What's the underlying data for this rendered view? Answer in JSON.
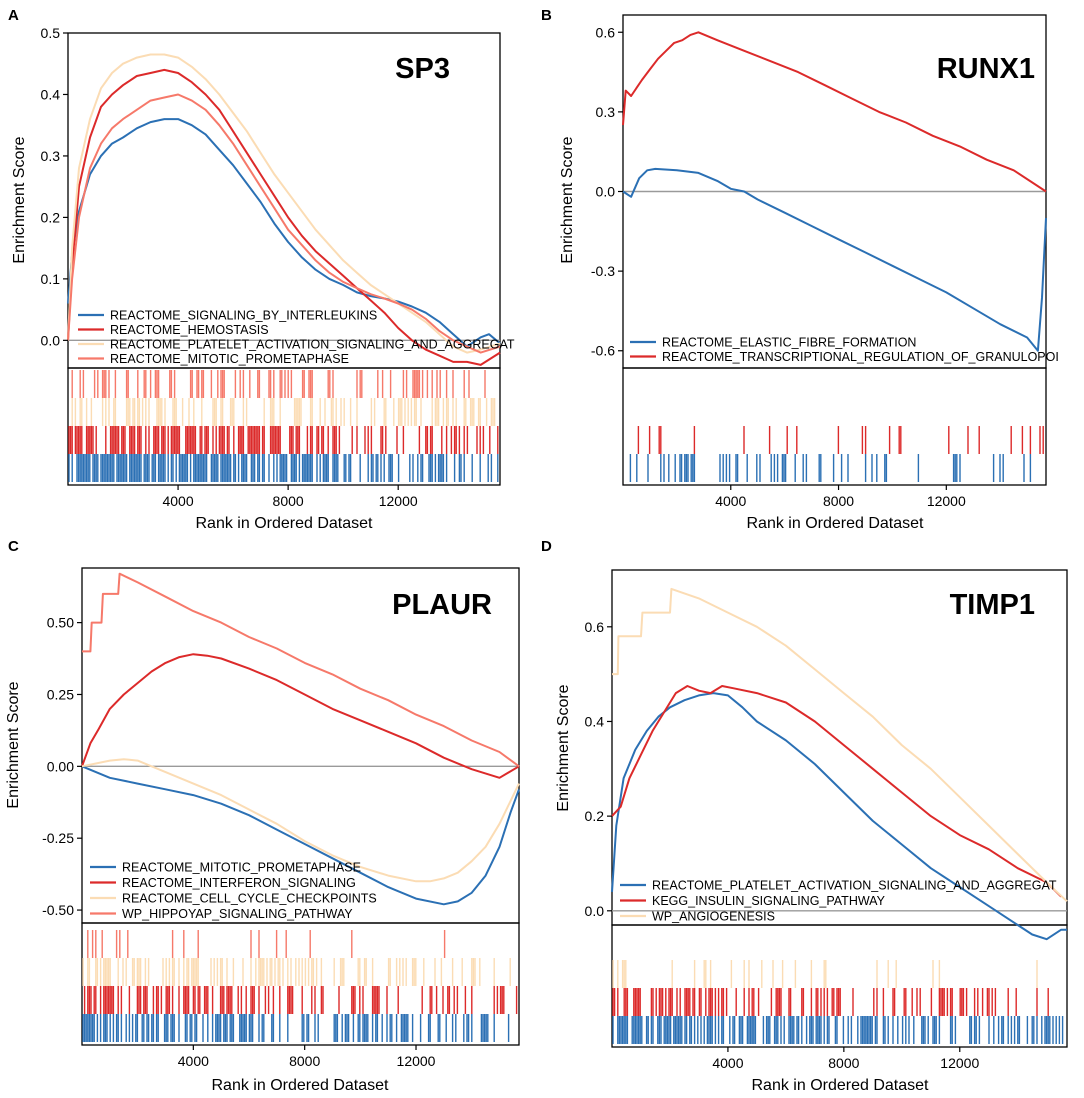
{
  "figure": {
    "x_axis_label": "Rank in Ordered Dataset",
    "y_axis_label": "Enrichment Score"
  },
  "colors": {
    "blue": "#2b70b4",
    "red": "#dc2a2a",
    "cream": "#fbdcb4",
    "salmon": "#f6796a",
    "zero_line": "#9a9a9a"
  },
  "chart_data": [
    {
      "panel_letter": "A",
      "title": "SP3",
      "type": "line",
      "xlabel": "Rank in Ordered Dataset",
      "ylabel": "Enrichment Score",
      "xlim": [
        0,
        15700
      ],
      "ylim": [
        -0.045,
        0.5
      ],
      "x_ticks": [
        4000,
        8000,
        12000
      ],
      "x_tick_labels": [
        "4000",
        "8000",
        "12000"
      ],
      "y_ticks": [
        0.0,
        0.1,
        0.2,
        0.3,
        0.4,
        0.5
      ],
      "y_tick_labels": [
        "0.0",
        "0.1",
        "0.2",
        "0.3",
        "0.4",
        "0.5"
      ],
      "legend_position": "bottom-left",
      "series": [
        {
          "name": "REACTOME_SIGNALING_BY_INTERLEUKINS",
          "color_key": "blue",
          "x": [
            0,
            150,
            400,
            800,
            1200,
            1600,
            2000,
            2500,
            3000,
            3500,
            4000,
            4500,
            5000,
            5500,
            6000,
            6500,
            7000,
            7500,
            8000,
            8500,
            9000,
            9500,
            10000,
            10500,
            11000,
            11500,
            12000,
            12500,
            13000,
            13500,
            14000,
            14500,
            15000,
            15300,
            15700
          ],
          "y": [
            0.06,
            0.14,
            0.21,
            0.27,
            0.3,
            0.32,
            0.33,
            0.345,
            0.355,
            0.36,
            0.36,
            0.35,
            0.335,
            0.31,
            0.285,
            0.255,
            0.225,
            0.19,
            0.16,
            0.135,
            0.115,
            0.1,
            0.09,
            0.078,
            0.072,
            0.068,
            0.063,
            0.055,
            0.045,
            0.03,
            0.01,
            -0.01,
            0.005,
            0.01,
            -0.005
          ]
        },
        {
          "name": "REACTOME_HEMOSTASIS",
          "color_key": "red",
          "x": [
            0,
            150,
            400,
            800,
            1200,
            1600,
            2000,
            2500,
            3000,
            3500,
            4000,
            4500,
            5000,
            5500,
            6000,
            6500,
            7000,
            7500,
            8000,
            8500,
            9000,
            9500,
            10000,
            10500,
            11000,
            11500,
            12000,
            12500,
            13000,
            13500,
            14000,
            14500,
            15000,
            15700
          ],
          "y": [
            0.0,
            0.12,
            0.25,
            0.33,
            0.38,
            0.4,
            0.415,
            0.43,
            0.435,
            0.44,
            0.435,
            0.42,
            0.4,
            0.375,
            0.34,
            0.305,
            0.27,
            0.235,
            0.2,
            0.17,
            0.145,
            0.125,
            0.105,
            0.085,
            0.065,
            0.045,
            0.02,
            0.0,
            -0.015,
            -0.025,
            -0.035,
            -0.035,
            -0.04,
            -0.02
          ]
        },
        {
          "name": "REACTOME_PLATELET_ACTIVATION_SIGNALING_AND_AGGREGAT",
          "color_key": "cream",
          "x": [
            0,
            150,
            400,
            800,
            1200,
            1600,
            2000,
            2500,
            3000,
            3500,
            4000,
            4500,
            5000,
            5500,
            6000,
            6500,
            7000,
            7500,
            8000,
            8500,
            9000,
            9500,
            10000,
            10500,
            11000,
            11500,
            12000,
            12500,
            13000,
            13500,
            14000,
            14500,
            15000,
            15700
          ],
          "y": [
            0.0,
            0.15,
            0.28,
            0.36,
            0.41,
            0.435,
            0.45,
            0.46,
            0.465,
            0.465,
            0.46,
            0.445,
            0.425,
            0.4,
            0.37,
            0.34,
            0.305,
            0.27,
            0.24,
            0.21,
            0.18,
            0.155,
            0.13,
            0.11,
            0.09,
            0.075,
            0.06,
            0.045,
            0.03,
            0.01,
            -0.01,
            -0.02,
            -0.015,
            -0.005
          ]
        },
        {
          "name": "REACTOME_MITOTIC_PROMETAPHASE",
          "color_key": "salmon",
          "x": [
            0,
            150,
            400,
            800,
            1200,
            1600,
            2000,
            2500,
            3000,
            3500,
            4000,
            4500,
            5000,
            5500,
            6000,
            6500,
            7000,
            7500,
            8000,
            8500,
            9000,
            9500,
            10000,
            10500,
            11000,
            11500,
            12000,
            12500,
            13000,
            13500,
            14000,
            14500,
            15000,
            15700
          ],
          "y": [
            0.0,
            0.1,
            0.2,
            0.28,
            0.32,
            0.345,
            0.36,
            0.375,
            0.39,
            0.395,
            0.4,
            0.39,
            0.375,
            0.35,
            0.32,
            0.285,
            0.25,
            0.215,
            0.18,
            0.155,
            0.13,
            0.11,
            0.095,
            0.085,
            0.075,
            0.068,
            0.06,
            0.05,
            0.035,
            0.015,
            0.0,
            -0.01,
            -0.02,
            -0.01
          ]
        }
      ],
      "hit_rows": [
        {
          "color_key": "salmon",
          "density": 0.35,
          "seed": 11
        },
        {
          "color_key": "cream",
          "density": 0.45,
          "seed": 12
        },
        {
          "color_key": "red",
          "density": 0.6,
          "seed": 13
        },
        {
          "color_key": "blue",
          "density": 0.75,
          "seed": 14
        }
      ]
    },
    {
      "panel_letter": "B",
      "title": "RUNX1",
      "type": "line",
      "xlabel": "Rank in Ordered Dataset",
      "ylabel": "Enrichment Score",
      "xlim": [
        0,
        15700
      ],
      "ylim": [
        -0.665,
        0.665
      ],
      "x_ticks": [
        4000,
        8000,
        12000
      ],
      "x_tick_labels": [
        "4000",
        "8000",
        "12000"
      ],
      "y_ticks": [
        -0.6,
        -0.3,
        0.0,
        0.3,
        0.6
      ],
      "y_tick_labels": [
        "-0.6",
        "-0.3",
        "0.0",
        "0.3",
        "0.6"
      ],
      "legend_position": "bottom-left",
      "series": [
        {
          "name": "REACTOME_ELASTIC_FIBRE_FORMATION",
          "color_key": "blue",
          "x": [
            0,
            300,
            600,
            900,
            1200,
            2000,
            2800,
            3500,
            4000,
            4500,
            5000,
            6000,
            7000,
            8000,
            9000,
            10000,
            11000,
            12000,
            13000,
            14000,
            15000,
            15400,
            15550,
            15700
          ],
          "y": [
            0.0,
            -0.02,
            0.05,
            0.08,
            0.085,
            0.08,
            0.07,
            0.04,
            0.01,
            0.0,
            -0.03,
            -0.08,
            -0.13,
            -0.18,
            -0.23,
            -0.28,
            -0.33,
            -0.38,
            -0.44,
            -0.5,
            -0.55,
            -0.6,
            -0.4,
            -0.1
          ]
        },
        {
          "name": "REACTOME_TRANSCRIPTIONAL_REGULATION_OF_GRANULOPOI",
          "color_key": "red",
          "x": [
            0,
            100,
            300,
            700,
            1000,
            1300,
            1600,
            1900,
            2200,
            2500,
            2800,
            3500,
            4500,
            5500,
            6500,
            7500,
            8500,
            9500,
            10500,
            11500,
            12500,
            13500,
            14500,
            15700
          ],
          "y": [
            0.25,
            0.38,
            0.36,
            0.42,
            0.46,
            0.5,
            0.53,
            0.56,
            0.57,
            0.59,
            0.6,
            0.57,
            0.53,
            0.49,
            0.45,
            0.4,
            0.35,
            0.3,
            0.26,
            0.21,
            0.17,
            0.12,
            0.08,
            0.0
          ]
        }
      ],
      "hit_rows": [
        {
          "color_key": "red",
          "density": 0.12,
          "seed": 21
        },
        {
          "color_key": "blue",
          "density": 0.2,
          "seed": 22
        }
      ]
    },
    {
      "panel_letter": "C",
      "title": "PLAUR",
      "type": "line",
      "xlabel": "Rank in Ordered Dataset",
      "ylabel": "Enrichment Score",
      "xlim": [
        0,
        15700
      ],
      "ylim": [
        -0.545,
        0.69
      ],
      "x_ticks": [
        4000,
        8000,
        12000
      ],
      "x_tick_labels": [
        "4000",
        "8000",
        "12000"
      ],
      "y_ticks": [
        -0.5,
        -0.25,
        0.0,
        0.25,
        0.5
      ],
      "y_tick_labels": [
        "-0.50",
        "-0.25",
        "0.00",
        "0.25",
        "0.50"
      ],
      "legend_position": "bottom-left",
      "series": [
        {
          "name": "REACTOME_MITOTIC_PROMETAPHASE",
          "color_key": "blue",
          "x": [
            0,
            500,
            1000,
            2000,
            3000,
            4000,
            5000,
            6000,
            7000,
            8000,
            9000,
            10000,
            11000,
            12000,
            13000,
            13500,
            14000,
            14500,
            15000,
            15400,
            15700
          ],
          "y": [
            0.0,
            -0.02,
            -0.04,
            -0.06,
            -0.08,
            -0.1,
            -0.13,
            -0.17,
            -0.22,
            -0.27,
            -0.32,
            -0.37,
            -0.42,
            -0.46,
            -0.48,
            -0.47,
            -0.44,
            -0.38,
            -0.28,
            -0.16,
            -0.08
          ]
        },
        {
          "name": "REACTOME_INTERFERON_SIGNALING",
          "color_key": "red",
          "x": [
            0,
            300,
            600,
            1000,
            1500,
            2000,
            2500,
            3000,
            3500,
            4000,
            4500,
            5000,
            6000,
            7000,
            8000,
            9000,
            10000,
            11000,
            12000,
            13000,
            14000,
            15000,
            15700
          ],
          "y": [
            0.0,
            0.08,
            0.13,
            0.2,
            0.25,
            0.29,
            0.33,
            0.36,
            0.38,
            0.39,
            0.385,
            0.375,
            0.34,
            0.3,
            0.25,
            0.2,
            0.16,
            0.12,
            0.08,
            0.03,
            -0.01,
            -0.04,
            0.0
          ]
        },
        {
          "name": "REACTOME_CELL_CYCLE_CHECKPOINTS",
          "color_key": "cream",
          "x": [
            0,
            500,
            1000,
            1500,
            2000,
            3000,
            4000,
            5000,
            6000,
            7000,
            8000,
            9000,
            10000,
            11000,
            12000,
            12500,
            13000,
            13500,
            14000,
            14500,
            15000,
            15500,
            15700
          ],
          "y": [
            0.0,
            0.01,
            0.02,
            0.025,
            0.02,
            -0.02,
            -0.06,
            -0.1,
            -0.15,
            -0.2,
            -0.26,
            -0.31,
            -0.35,
            -0.38,
            -0.4,
            -0.4,
            -0.39,
            -0.37,
            -0.33,
            -0.28,
            -0.2,
            -0.1,
            -0.06
          ]
        },
        {
          "name": "WP_HIPPOYAP_SIGNALING_PATHWAY",
          "color_key": "salmon",
          "x": [
            0,
            300,
            350,
            700,
            750,
            1300,
            1350,
            2000,
            3000,
            4000,
            5000,
            6000,
            7000,
            8000,
            9000,
            10000,
            11000,
            12000,
            13000,
            14000,
            15000,
            15700
          ],
          "y": [
            0.4,
            0.4,
            0.5,
            0.5,
            0.6,
            0.6,
            0.67,
            0.64,
            0.59,
            0.54,
            0.5,
            0.45,
            0.41,
            0.36,
            0.32,
            0.27,
            0.23,
            0.18,
            0.14,
            0.09,
            0.05,
            0.0
          ]
        }
      ],
      "hit_rows": [
        {
          "color_key": "salmon",
          "density": 0.07,
          "seed": 31
        },
        {
          "color_key": "cream",
          "density": 0.5,
          "seed": 32
        },
        {
          "color_key": "red",
          "density": 0.55,
          "seed": 33
        },
        {
          "color_key": "blue",
          "density": 0.6,
          "seed": 34
        }
      ]
    },
    {
      "panel_letter": "D",
      "title": "TIMP1",
      "type": "line",
      "xlabel": "Rank in Ordered Dataset",
      "ylabel": "Enrichment Score",
      "xlim": [
        0,
        15700
      ],
      "ylim": [
        -0.03,
        0.72
      ],
      "x_ticks": [
        4000,
        8000,
        12000
      ],
      "x_tick_labels": [
        "4000",
        "8000",
        "12000"
      ],
      "y_ticks": [
        0.0,
        0.2,
        0.4,
        0.6
      ],
      "y_tick_labels": [
        "0.0",
        "0.2",
        "0.4",
        "0.6"
      ],
      "legend_position": "bottom-left",
      "series": [
        {
          "name": "REACTOME_PLATELET_ACTIVATION_SIGNALING_AND_AGGREGAT",
          "color_key": "blue",
          "x": [
            0,
            150,
            400,
            800,
            1200,
            1600,
            2000,
            2500,
            3000,
            3500,
            4000,
            4500,
            5000,
            6000,
            7000,
            8000,
            9000,
            10000,
            11000,
            12000,
            13000,
            14000,
            14500,
            15000,
            15500,
            15700
          ],
          "y": [
            0.04,
            0.18,
            0.28,
            0.34,
            0.38,
            0.41,
            0.43,
            0.445,
            0.455,
            0.46,
            0.455,
            0.43,
            0.4,
            0.36,
            0.31,
            0.25,
            0.19,
            0.14,
            0.09,
            0.05,
            0.01,
            -0.03,
            -0.05,
            -0.06,
            -0.04,
            -0.04
          ]
        },
        {
          "name": "KEGG_INSULIN_SIGNALING_PATHWAY",
          "color_key": "red",
          "x": [
            0,
            300,
            600,
            1000,
            1400,
            1800,
            2200,
            2600,
            3000,
            3400,
            3800,
            4200,
            5000,
            6000,
            7000,
            8000,
            9000,
            10000,
            11000,
            12000,
            13000,
            14000,
            15000,
            15500
          ],
          "y": [
            0.2,
            0.22,
            0.28,
            0.33,
            0.38,
            0.42,
            0.46,
            0.475,
            0.465,
            0.46,
            0.475,
            0.47,
            0.46,
            0.44,
            0.4,
            0.35,
            0.3,
            0.25,
            0.2,
            0.16,
            0.13,
            0.09,
            0.06,
            0.03
          ]
        },
        {
          "name": "WP_ANGIOGENESIS",
          "color_key": "cream",
          "x": [
            0,
            200,
            220,
            1000,
            1050,
            2000,
            2050,
            3000,
            4000,
            5000,
            6000,
            7000,
            8000,
            9000,
            10000,
            11000,
            12000,
            13000,
            14000,
            15000,
            15700
          ],
          "y": [
            0.5,
            0.5,
            0.58,
            0.58,
            0.63,
            0.63,
            0.68,
            0.66,
            0.63,
            0.6,
            0.56,
            0.51,
            0.46,
            0.41,
            0.35,
            0.3,
            0.24,
            0.18,
            0.12,
            0.06,
            0.02
          ]
        }
      ],
      "hit_rows": [
        {
          "color_key": "cream",
          "density": 0.18,
          "seed": 41
        },
        {
          "color_key": "red",
          "density": 0.45,
          "seed": 42
        },
        {
          "color_key": "blue",
          "density": 0.7,
          "seed": 43
        }
      ]
    }
  ]
}
